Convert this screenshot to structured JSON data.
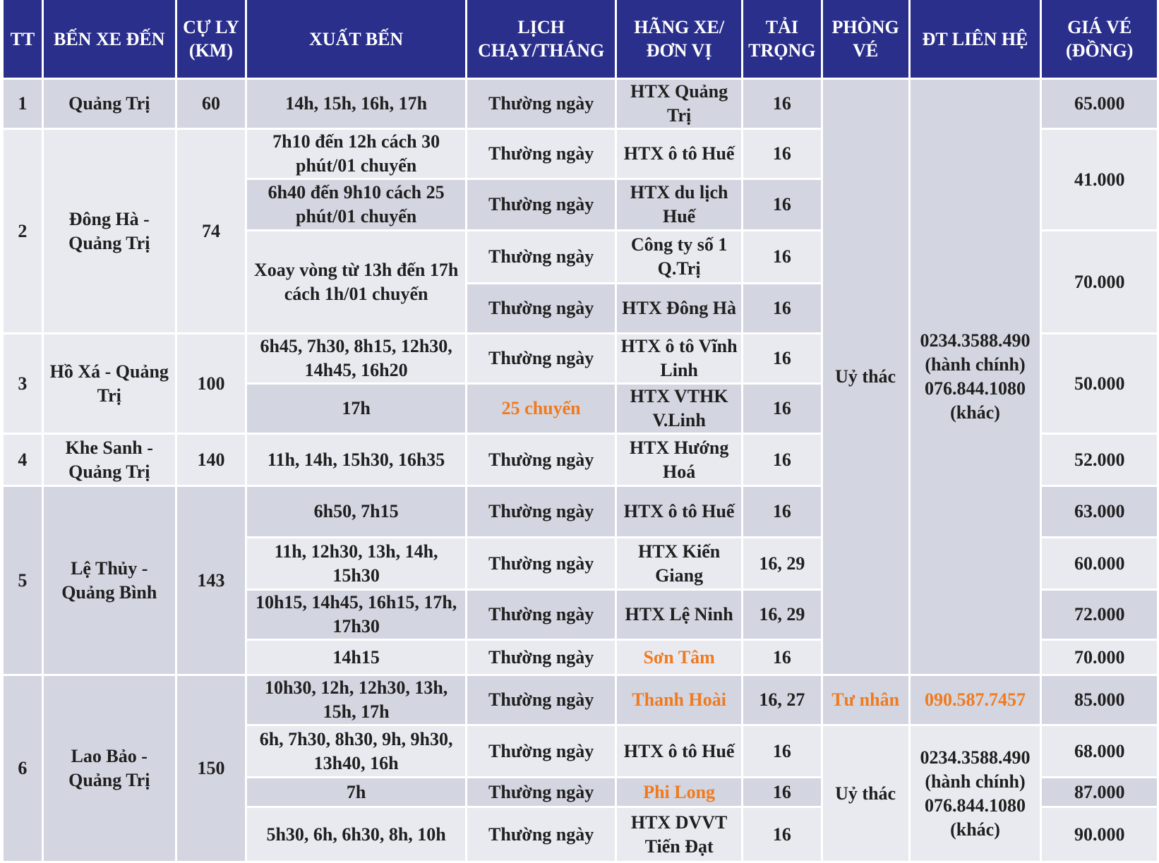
{
  "header": [
    "TT",
    "BẾN XE ĐẾN",
    "CỰ LY (KM)",
    "XUẤT BẾN",
    "LỊCH CHẠY/THÁNG",
    "HÃNG XE/ ĐƠN VỊ",
    "TẢI TRỌNG",
    "PHÒNG VÉ",
    "ĐT LIÊN HỆ",
    "GIÁ VÉ (ĐỒNG)"
  ],
  "rows": [
    [
      "1",
      "Quảng Trị",
      "60",
      "14h, 15h, 16h, 17h",
      "Thường ngày",
      "HTX Quảng Trị",
      "16",
      "Uỷ thác",
      "0234.3588.490 (hành chính) 076.844.1080 (khác)",
      "65.000"
    ],
    [
      "2",
      "Đông Hà - Quảng Trị",
      "74",
      "7h10 đến 12h cách 30 phút/01 chuyến",
      "Thường ngày",
      "HTX ô tô Huế",
      "16",
      "41.000"
    ],
    [
      "6h40 đến 9h10 cách 25 phút/01 chuyến",
      "Thường ngày",
      "HTX du lịch Huế",
      "16"
    ],
    [
      "Xoay vòng từ 13h đến 17h cách 1h/01 chuyến",
      "Thường ngày",
      "Công ty số 1 Q.Trị",
      "16",
      "70.000"
    ],
    [
      "Thường ngày",
      "HTX Đông Hà",
      "16"
    ],
    [
      "3",
      "Hồ Xá - Quảng Trị",
      "100",
      "6h45, 7h30, 8h15, 12h30, 14h45, 16h20",
      "Thường ngày",
      "HTX ô tô Vĩnh Linh",
      "16",
      "50.000"
    ],
    [
      "17h",
      "25 chuyến",
      "HTX VTHK V.Linh",
      "16"
    ],
    [
      "4",
      "Khe Sanh - Quảng Trị",
      "140",
      "11h, 14h, 15h30, 16h35",
      "Thường ngày",
      "HTX Hướng Hoá",
      "16",
      "52.000"
    ],
    [
      "5",
      "Lệ Thủy - Quảng Bình",
      "143",
      "6h50, 7h15",
      "Thường ngày",
      "HTX ô tô Huế",
      "16",
      "63.000"
    ],
    [
      "11h, 12h30, 13h, 14h, 15h30",
      "Thường ngày",
      "HTX Kiến Giang",
      "16, 29",
      "60.000"
    ],
    [
      "10h15, 14h45, 16h15, 17h, 17h30",
      "Thường ngày",
      "HTX Lệ Ninh",
      "16, 29",
      "72.000"
    ],
    [
      "14h15",
      "Thường ngày",
      "Sơn Tâm",
      "16",
      "70.000"
    ],
    [
      "6",
      "Lao Bảo - Quảng Trị",
      "150",
      "10h30, 12h, 12h30, 13h, 15h, 17h",
      "Thường ngày",
      "Thanh Hoài",
      "16, 27",
      "Tư nhân",
      "090.587.7457",
      "85.000"
    ],
    [
      "6h, 7h30, 8h30, 9h, 9h30, 13h40, 16h",
      "Thường ngày",
      "HTX ô tô Huế",
      "16",
      "Uỷ thác",
      "0234.3588.490 (hành chính) 076.844.1080 (khác)",
      "68.000"
    ],
    [
      "7h",
      "Thường ngày",
      "Phi Long",
      "16",
      "87.000"
    ],
    [
      "5h30, 6h, 6h30, 8h, 10h",
      "Thường ngày",
      "HTX DVVT Tiến Đạt",
      "16",
      "90.000"
    ]
  ]
}
